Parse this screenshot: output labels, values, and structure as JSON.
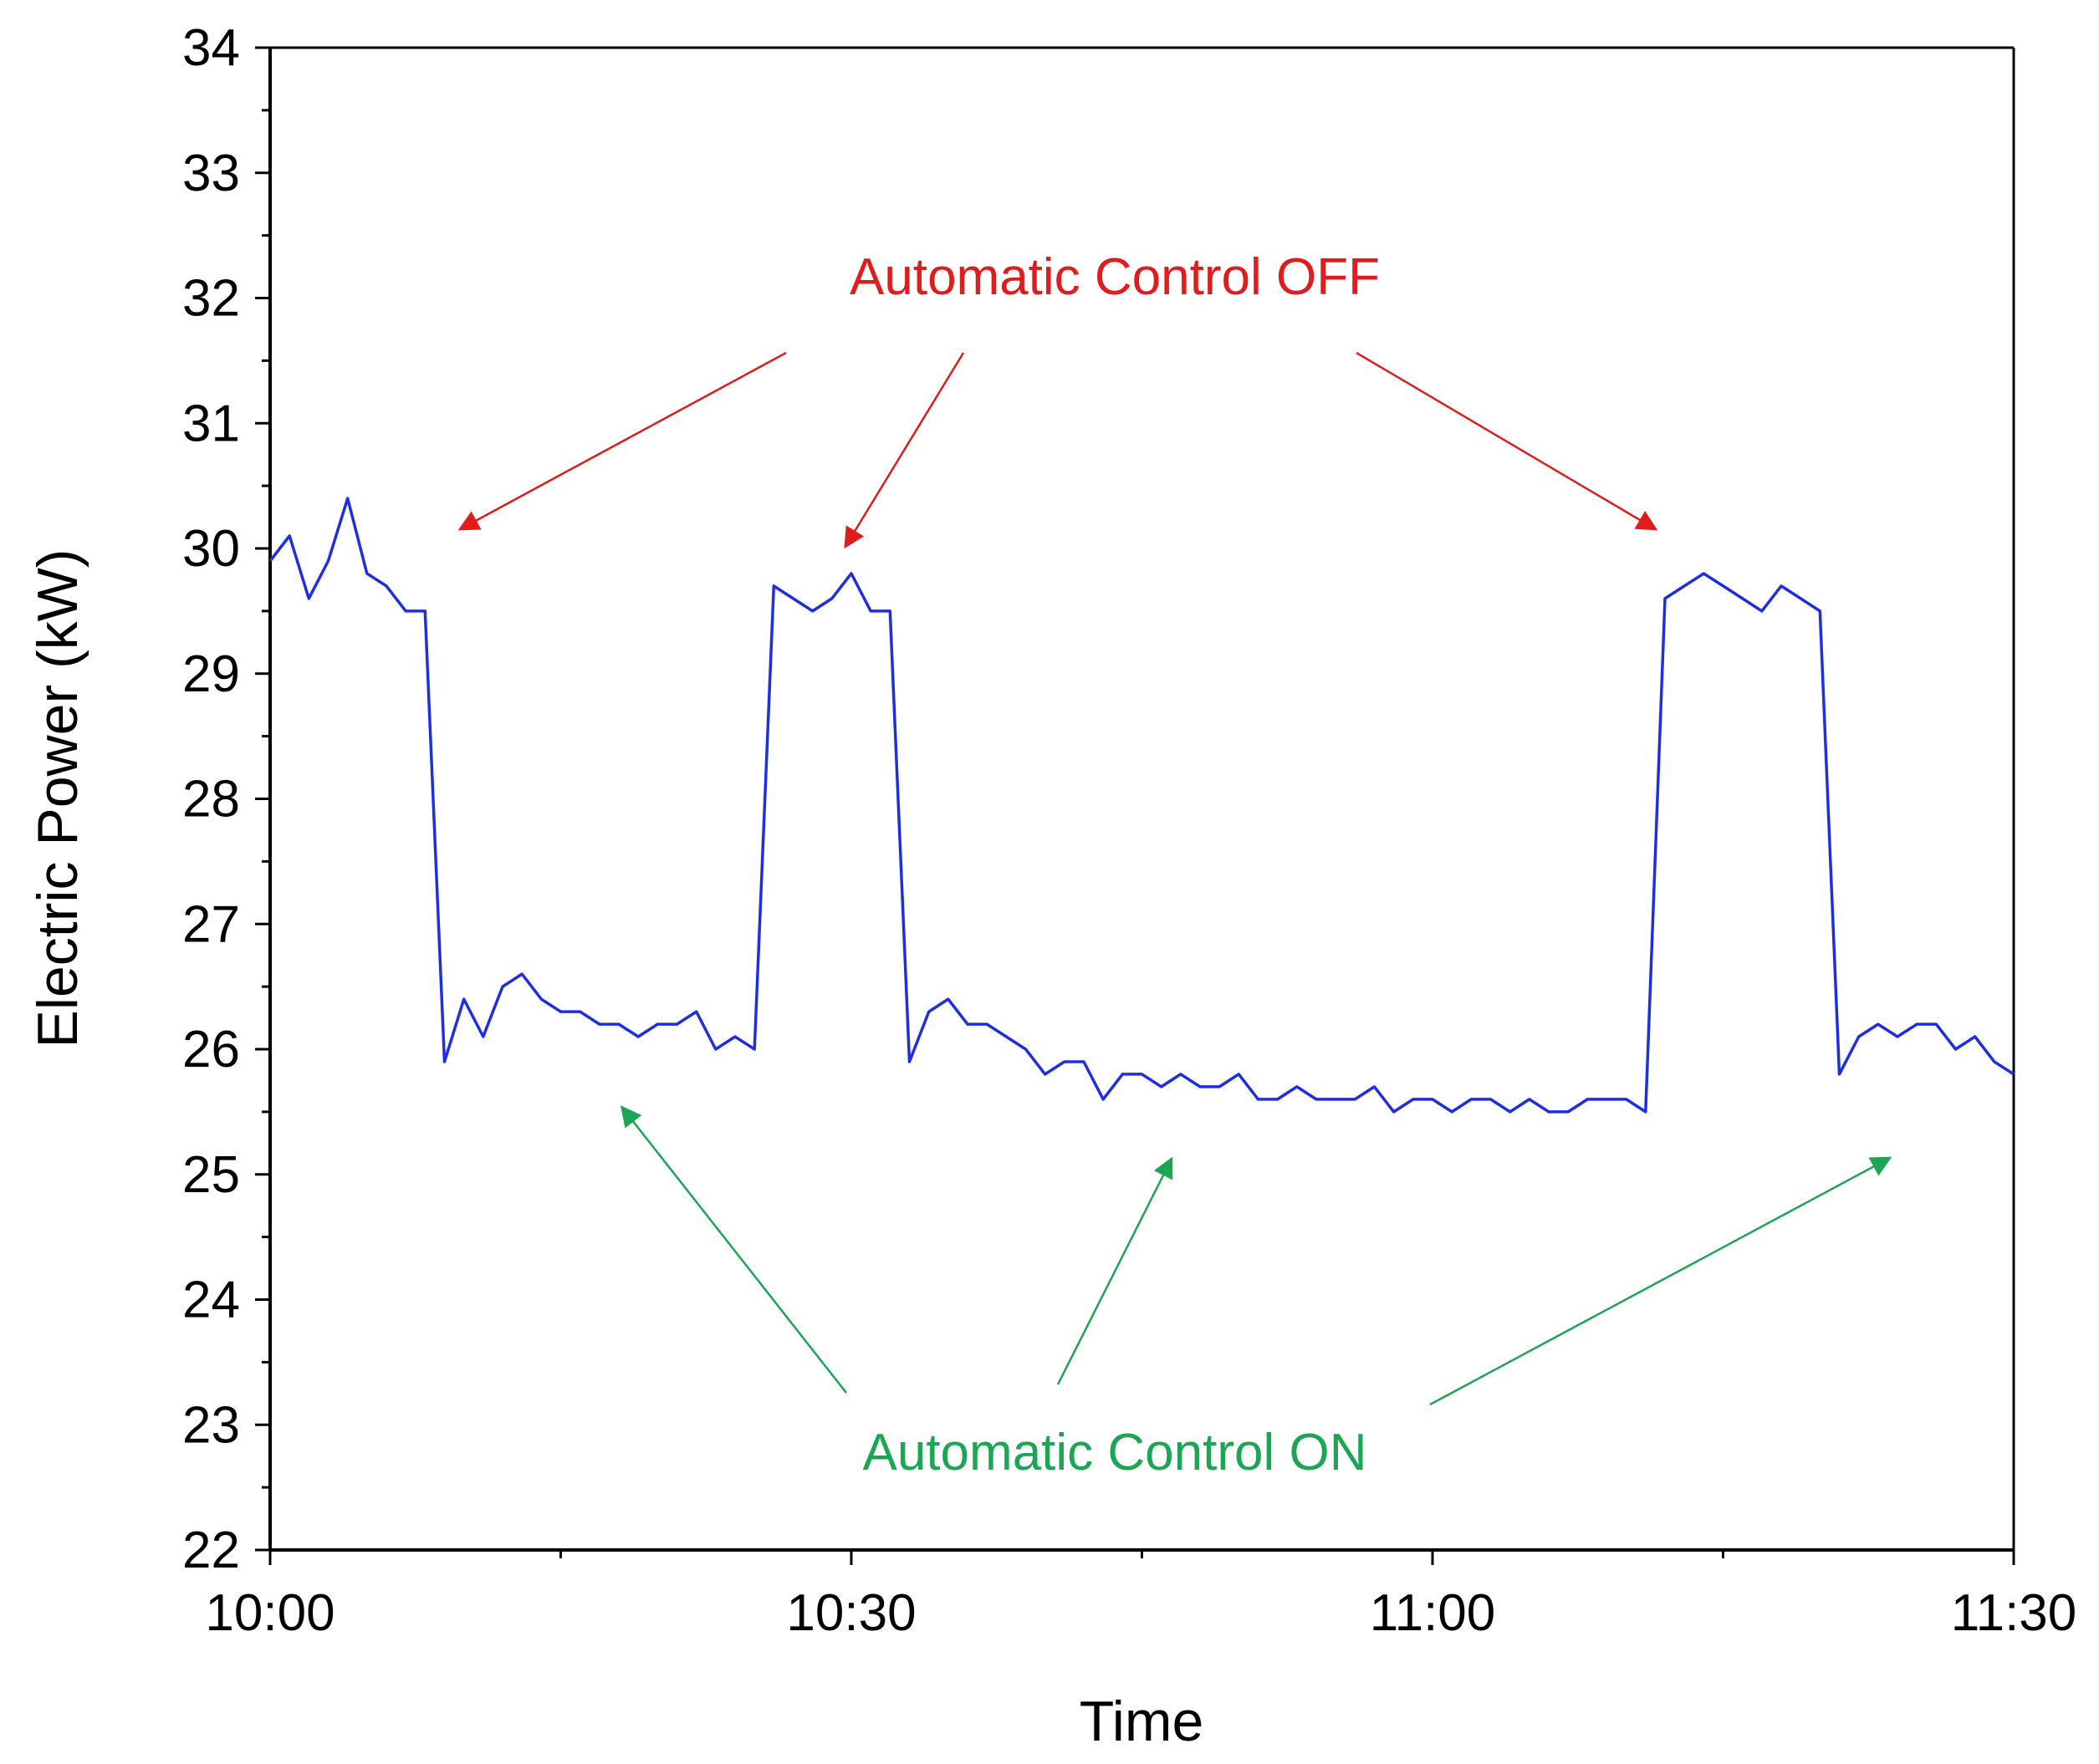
{
  "chart_data": {
    "type": "line",
    "title": "",
    "xlabel": "Time",
    "ylabel": "Electric Power (kW)",
    "xlim": [
      "10:00",
      "11:30"
    ],
    "ylim": [
      22,
      34
    ],
    "x_ticks": [
      "10:00",
      "10:30",
      "11:00",
      "11:30"
    ],
    "y_ticks": [
      22,
      23,
      24,
      25,
      26,
      27,
      28,
      29,
      30,
      31,
      32,
      33,
      34
    ],
    "grid": false,
    "legend": "none",
    "series": [
      {
        "color": "#1f2ee0",
        "x": [
          "10:00",
          "10:01",
          "10:02",
          "10:03",
          "10:04",
          "10:05",
          "10:06",
          "10:07",
          "10:08",
          "10:09",
          "10:10",
          "10:11",
          "10:12",
          "10:13",
          "10:14",
          "10:15",
          "10:16",
          "10:17",
          "10:18",
          "10:19",
          "10:20",
          "10:21",
          "10:22",
          "10:23",
          "10:24",
          "10:25",
          "10:26",
          "10:27",
          "10:28",
          "10:29",
          "10:30",
          "10:31",
          "10:32",
          "10:33",
          "10:34",
          "10:35",
          "10:36",
          "10:37",
          "10:38",
          "10:39",
          "10:40",
          "10:41",
          "10:42",
          "10:43",
          "10:44",
          "10:45",
          "10:46",
          "10:47",
          "10:48",
          "10:49",
          "10:50",
          "10:51",
          "10:52",
          "10:53",
          "10:54",
          "10:55",
          "10:56",
          "10:57",
          "10:58",
          "10:59",
          "11:00",
          "11:01",
          "11:02",
          "11:03",
          "11:04",
          "11:05",
          "11:06",
          "11:07",
          "11:08",
          "11:09",
          "11:10",
          "11:11",
          "11:12",
          "11:13",
          "11:14",
          "11:15",
          "11:16",
          "11:17",
          "11:18",
          "11:19",
          "11:20",
          "11:21",
          "11:22",
          "11:23",
          "11:24",
          "11:25",
          "11:26",
          "11:27",
          "11:28",
          "11:29",
          "11:30"
        ],
        "values": [
          29.9,
          30.1,
          29.6,
          29.9,
          30.4,
          29.8,
          29.7,
          29.5,
          29.5,
          25.9,
          26.4,
          26.1,
          26.5,
          26.6,
          26.4,
          26.3,
          26.3,
          26.2,
          26.2,
          26.1,
          26.2,
          26.2,
          26.3,
          26.0,
          26.1,
          26.0,
          29.7,
          29.6,
          29.5,
          29.6,
          29.8,
          29.5,
          29.5,
          25.9,
          26.3,
          26.4,
          26.2,
          26.2,
          26.1,
          26.0,
          25.8,
          25.9,
          25.9,
          25.6,
          25.8,
          25.8,
          25.7,
          25.8,
          25.7,
          25.7,
          25.8,
          25.6,
          25.6,
          25.7,
          25.6,
          25.6,
          25.6,
          25.7,
          25.5,
          25.6,
          25.6,
          25.5,
          25.6,
          25.6,
          25.5,
          25.6,
          25.5,
          25.5,
          25.6,
          25.6,
          25.6,
          25.5,
          29.6,
          29.7,
          29.8,
          29.7,
          29.6,
          29.5,
          29.7,
          29.6,
          29.5,
          25.8,
          26.1,
          26.2,
          26.1,
          26.2,
          26.2,
          26.0,
          26.1,
          25.9,
          25.8
        ]
      }
    ],
    "annotations": [
      {
        "text": "Automatic Control OFF",
        "color": "#e01c1c",
        "arrows_to": [
          "10:10",
          "10:30",
          "11:13"
        ]
      },
      {
        "text": "Automatic Control ON",
        "color": "#1aa653",
        "arrows_to": [
          "10:18",
          "10:47",
          "11:25"
        ]
      }
    ]
  }
}
